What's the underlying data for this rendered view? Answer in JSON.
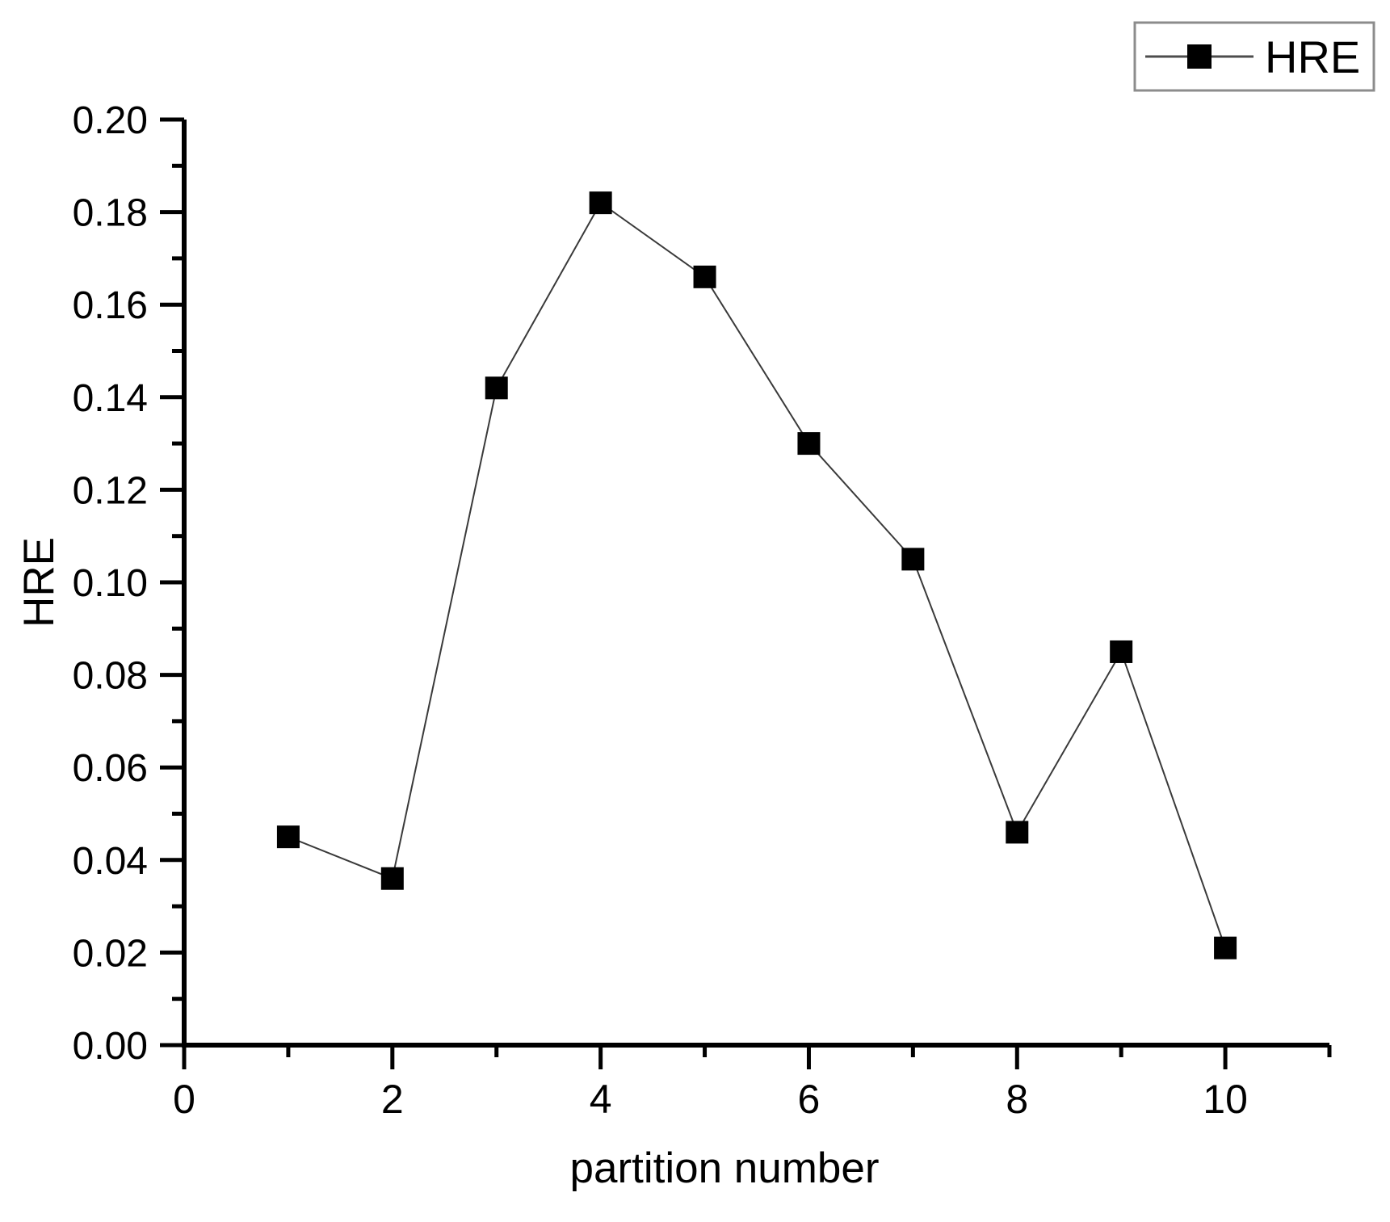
{
  "chart_data": {
    "type": "line",
    "title": "",
    "xlabel": "partition number",
    "ylabel": "HRE",
    "x": [
      1,
      2,
      3,
      4,
      5,
      6,
      7,
      8,
      9,
      10
    ],
    "series": [
      {
        "name": "HRE",
        "marker": "filled-square",
        "values": [
          0.045,
          0.036,
          0.142,
          0.182,
          0.166,
          0.13,
          0.105,
          0.046,
          0.085,
          0.021
        ]
      }
    ],
    "xlim": [
      0,
      11
    ],
    "ylim": [
      0.0,
      0.2
    ],
    "x_major_ticks": [
      0,
      2,
      4,
      6,
      8,
      10
    ],
    "x_minor_ticks": [
      1,
      3,
      5,
      7,
      9,
      11
    ],
    "y_major_ticks": [
      0.0,
      0.02,
      0.04,
      0.06,
      0.08,
      0.1,
      0.12,
      0.14,
      0.16,
      0.18,
      0.2
    ],
    "y_minor_ticks": [
      0.01,
      0.03,
      0.05,
      0.07,
      0.09,
      0.11,
      0.13,
      0.15,
      0.17,
      0.19
    ],
    "y_tick_decimals": 2,
    "grid": false,
    "legend": {
      "position": "top-right",
      "entries": [
        "HRE"
      ]
    }
  },
  "colors": {
    "background": "#ffffff",
    "axis": "#000000",
    "text": "#000000",
    "series_line": "#3a3a3a",
    "series_marker": "#000000",
    "legend_border": "#8c8c8c",
    "legend_line": "#4d4d4d",
    "legend_marker": "#000000"
  }
}
